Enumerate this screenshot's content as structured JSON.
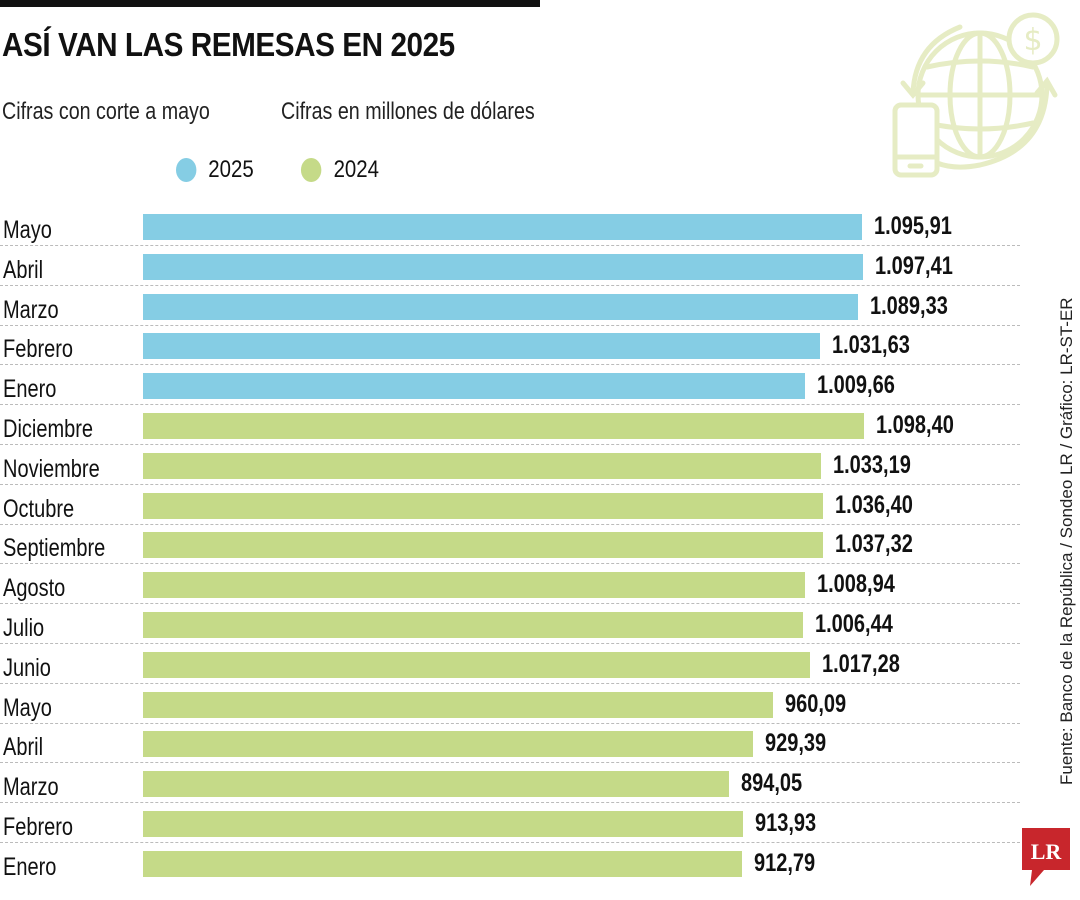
{
  "header": {
    "title": "ASÍ VAN LAS REMESAS EN 2025",
    "subtitle_left": "Cifras con corte a mayo",
    "subtitle_right": "Cifras en millones de dólares"
  },
  "source": "Fuente: Banco de la República / Sondeo LR / Gráfico: LR-ST-ER",
  "logo": "LR",
  "colors": {
    "series_2025": "#85cde4",
    "series_2024": "#c5da88",
    "icon": "#e6ecc4",
    "logo": "#c8262c"
  },
  "chart_data": {
    "type": "bar",
    "orientation": "horizontal",
    "title": "ASÍ VAN LAS REMESAS EN 2025",
    "legend": [
      {
        "name": "2025",
        "color": "#85cde4"
      },
      {
        "name": "2024",
        "color": "#c5da88"
      }
    ],
    "legend_placement": "top",
    "grid": false,
    "xlim": [
      0,
      1100
    ],
    "categories": [
      "Mayo",
      "Abril",
      "Marzo",
      "Febrero",
      "Enero",
      "Diciembre",
      "Noviembre",
      "Octubre",
      "Septiembre",
      "Agosto",
      "Julio",
      "Junio",
      "Mayo",
      "Abril",
      "Marzo",
      "Febrero",
      "Enero"
    ],
    "series_of_row": [
      "2025",
      "2025",
      "2025",
      "2025",
      "2025",
      "2024",
      "2024",
      "2024",
      "2024",
      "2024",
      "2024",
      "2024",
      "2024",
      "2024",
      "2024",
      "2024",
      "2024"
    ],
    "values": [
      1095.91,
      1097.41,
      1089.33,
      1031.63,
      1009.66,
      1098.4,
      1033.19,
      1036.4,
      1037.32,
      1008.94,
      1006.44,
      1017.28,
      960.09,
      929.39,
      894.05,
      913.93,
      912.79
    ],
    "value_labels": [
      "1.095,91",
      "1.097,41",
      "1.089,33",
      "1.031,63",
      "1.009,66",
      "1.098,40",
      "1.033,19",
      "1.036,40",
      "1.037,32",
      "1.008,94",
      "1.006,44",
      "1.017,28",
      "960,09",
      "929,39",
      "894,05",
      "913,93",
      "912,79"
    ]
  }
}
